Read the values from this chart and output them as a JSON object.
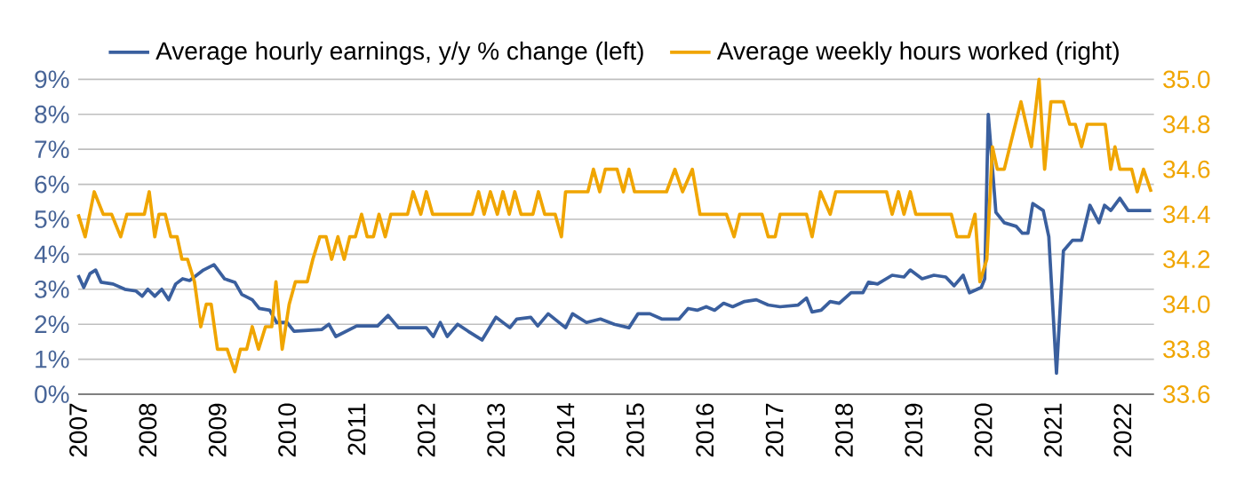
{
  "chart_data": {
    "type": "line",
    "xlim": [
      2007,
      2022.45
    ],
    "xticks": [
      2007,
      2008,
      2009,
      2010,
      2011,
      2012,
      2013,
      2014,
      2015,
      2016,
      2017,
      2018,
      2019,
      2020,
      2021,
      2022
    ],
    "ylim": [
      0,
      9
    ],
    "yticks": [
      {
        "value": 0,
        "label": "0%"
      },
      {
        "value": 1,
        "label": "1%"
      },
      {
        "value": 2,
        "label": "2%"
      },
      {
        "value": 3,
        "label": "3%"
      },
      {
        "value": 4,
        "label": "4%"
      },
      {
        "value": 5,
        "label": "5%"
      },
      {
        "value": 6,
        "label": "6%"
      },
      {
        "value": 7,
        "label": "7%"
      },
      {
        "value": 8,
        "label": "8%"
      },
      {
        "value": 9,
        "label": "9%"
      }
    ],
    "y2lim": [
      33.6,
      35.0
    ],
    "y2ticks": [
      {
        "value": 33.6,
        "label": "33.6"
      },
      {
        "value": 33.8,
        "label": "33.8"
      },
      {
        "value": 34.0,
        "label": "34.0"
      },
      {
        "value": 34.2,
        "label": "34.2"
      },
      {
        "value": 34.4,
        "label": "34.4"
      },
      {
        "value": 34.6,
        "label": "34.6"
      },
      {
        "value": 34.8,
        "label": "34.8"
      },
      {
        "value": 35.0,
        "label": "35.0"
      }
    ],
    "grid": "y",
    "legend": "top",
    "series": [
      {
        "name": "Average hourly earnings, y/y % change (left)",
        "color": "#3a5f9e",
        "x": [
          2007.0,
          2007.08,
          2007.17,
          2007.25,
          2007.33,
          2007.5,
          2007.67,
          2007.83,
          2007.92,
          2008.0,
          2008.1,
          2008.2,
          2008.3,
          2008.4,
          2008.5,
          2008.6,
          2008.7,
          2008.8,
          2008.95,
          2009.1,
          2009.25,
          2009.35,
          2009.5,
          2009.6,
          2009.75,
          2009.85,
          2010.0,
          2010.1,
          2010.5,
          2010.6,
          2010.7,
          2011.0,
          2011.3,
          2011.45,
          2011.6,
          2012.0,
          2012.1,
          2012.2,
          2012.3,
          2012.45,
          2012.6,
          2012.8,
          2013.0,
          2013.2,
          2013.3,
          2013.5,
          2013.6,
          2013.75,
          2014.0,
          2014.1,
          2014.3,
          2014.5,
          2014.7,
          2014.91,
          2015.04,
          2015.21,
          2015.38,
          2015.63,
          2015.76,
          2015.89,
          2016.02,
          2016.14,
          2016.27,
          2016.4,
          2016.57,
          2016.74,
          2016.91,
          2017.08,
          2017.34,
          2017.46,
          2017.54,
          2017.67,
          2017.8,
          2017.93,
          2018.1,
          2018.27,
          2018.35,
          2018.48,
          2018.69,
          2018.86,
          2018.95,
          2019.12,
          2019.29,
          2019.46,
          2019.58,
          2019.71,
          2019.8,
          2019.97,
          2020.02,
          2020.07,
          2020.18,
          2020.3,
          2020.47,
          2020.56,
          2020.64,
          2020.71,
          2020.86,
          2020.94,
          2021.05,
          2021.15,
          2021.28,
          2021.41,
          2021.53,
          2021.66,
          2021.74,
          2021.83,
          2021.96,
          2022.08,
          2022.41
        ],
        "values": [
          3.4,
          3.05,
          3.45,
          3.55,
          3.2,
          3.15,
          3.0,
          2.95,
          2.8,
          3.0,
          2.8,
          3.0,
          2.7,
          3.15,
          3.3,
          3.25,
          3.4,
          3.55,
          3.7,
          3.3,
          3.2,
          2.85,
          2.7,
          2.45,
          2.4,
          2.05,
          2.05,
          1.8,
          1.85,
          2.0,
          1.65,
          1.95,
          1.95,
          2.25,
          1.9,
          1.9,
          1.65,
          2.05,
          1.65,
          2.0,
          1.8,
          1.55,
          2.2,
          1.9,
          2.15,
          2.2,
          1.95,
          2.3,
          1.9,
          2.3,
          2.05,
          2.15,
          2.0,
          1.9,
          2.3,
          2.3,
          2.15,
          2.15,
          2.45,
          2.4,
          2.5,
          2.4,
          2.6,
          2.5,
          2.65,
          2.7,
          2.55,
          2.5,
          2.55,
          2.75,
          2.35,
          2.4,
          2.65,
          2.6,
          2.9,
          2.9,
          3.2,
          3.15,
          3.4,
          3.35,
          3.55,
          3.3,
          3.4,
          3.35,
          3.1,
          3.4,
          2.9,
          3.05,
          3.3,
          8.0,
          5.2,
          4.9,
          4.8,
          4.6,
          4.6,
          5.45,
          5.25,
          4.5,
          0.6,
          4.1,
          4.4,
          4.4,
          5.4,
          4.9,
          5.4,
          5.25,
          5.6,
          5.25,
          5.25
        ]
      },
      {
        "name": "Average weekly hours worked (right)",
        "color": "#f0a500",
        "axis": "y2",
        "x": [
          2007.0,
          2007.1,
          2007.23,
          2007.36,
          2007.48,
          2007.61,
          2007.7,
          2007.95,
          2008.02,
          2008.1,
          2008.16,
          2008.25,
          2008.33,
          2008.42,
          2008.49,
          2008.57,
          2008.67,
          2008.76,
          2008.84,
          2008.91,
          2009.0,
          2009.14,
          2009.25,
          2009.33,
          2009.42,
          2009.5,
          2009.59,
          2009.69,
          2009.78,
          2009.84,
          2009.93,
          2010.03,
          2010.12,
          2010.29,
          2010.37,
          2010.47,
          2010.56,
          2010.64,
          2010.73,
          2010.82,
          2010.9,
          2010.98,
          2011.07,
          2011.15,
          2011.24,
          2011.32,
          2011.41,
          2011.49,
          2011.73,
          2011.81,
          2011.92,
          2012.0,
          2012.09,
          2012.66,
          2012.75,
          2012.83,
          2012.92,
          2013.02,
          2013.1,
          2013.19,
          2013.27,
          2013.36,
          2013.53,
          2013.61,
          2013.7,
          2013.85,
          2013.94,
          2014.0,
          2014.32,
          2014.4,
          2014.49,
          2014.57,
          2014.74,
          2014.83,
          2014.91,
          2014.99,
          2015.45,
          2015.57,
          2015.68,
          2015.82,
          2015.93,
          2016.31,
          2016.42,
          2016.5,
          2016.82,
          2016.91,
          2017.01,
          2017.08,
          2017.46,
          2017.54,
          2017.66,
          2017.8,
          2017.88,
          2018.61,
          2018.69,
          2018.78,
          2018.86,
          2018.95,
          2019.03,
          2019.54,
          2019.62,
          2019.79,
          2019.88,
          2019.95,
          2020.05,
          2020.13,
          2020.2,
          2020.3,
          2020.54,
          2020.69,
          2020.8,
          2020.88,
          2020.97,
          2021.15,
          2021.24,
          2021.32,
          2021.41,
          2021.49,
          2021.75,
          2021.83,
          2021.89,
          2021.96,
          2022.13,
          2022.21,
          2022.3,
          2022.41
        ],
        "values": [
          34.4,
          34.3,
          34.5,
          34.4,
          34.4,
          34.3,
          34.4,
          34.4,
          34.5,
          34.3,
          34.4,
          34.4,
          34.3,
          34.3,
          34.2,
          34.2,
          34.1,
          33.9,
          34.0,
          34.0,
          33.8,
          33.8,
          33.7,
          33.8,
          33.8,
          33.9,
          33.8,
          33.9,
          33.9,
          34.1,
          33.8,
          34.0,
          34.1,
          34.1,
          34.2,
          34.3,
          34.3,
          34.2,
          34.3,
          34.2,
          34.3,
          34.3,
          34.4,
          34.3,
          34.3,
          34.4,
          34.3,
          34.4,
          34.4,
          34.5,
          34.4,
          34.5,
          34.4,
          34.4,
          34.5,
          34.4,
          34.5,
          34.4,
          34.5,
          34.4,
          34.5,
          34.4,
          34.4,
          34.5,
          34.4,
          34.4,
          34.3,
          34.5,
          34.5,
          34.6,
          34.5,
          34.6,
          34.6,
          34.5,
          34.6,
          34.5,
          34.5,
          34.6,
          34.5,
          34.6,
          34.4,
          34.4,
          34.3,
          34.4,
          34.4,
          34.3,
          34.3,
          34.4,
          34.4,
          34.3,
          34.5,
          34.4,
          34.5,
          34.5,
          34.4,
          34.5,
          34.4,
          34.5,
          34.4,
          34.4,
          34.3,
          34.3,
          34.4,
          34.1,
          34.2,
          34.7,
          34.6,
          34.6,
          34.9,
          34.7,
          35.0,
          34.6,
          34.9,
          34.9,
          34.8,
          34.8,
          34.7,
          34.8,
          34.8,
          34.6,
          34.7,
          34.6,
          34.6,
          34.5,
          34.6,
          34.5
        ]
      }
    ]
  }
}
